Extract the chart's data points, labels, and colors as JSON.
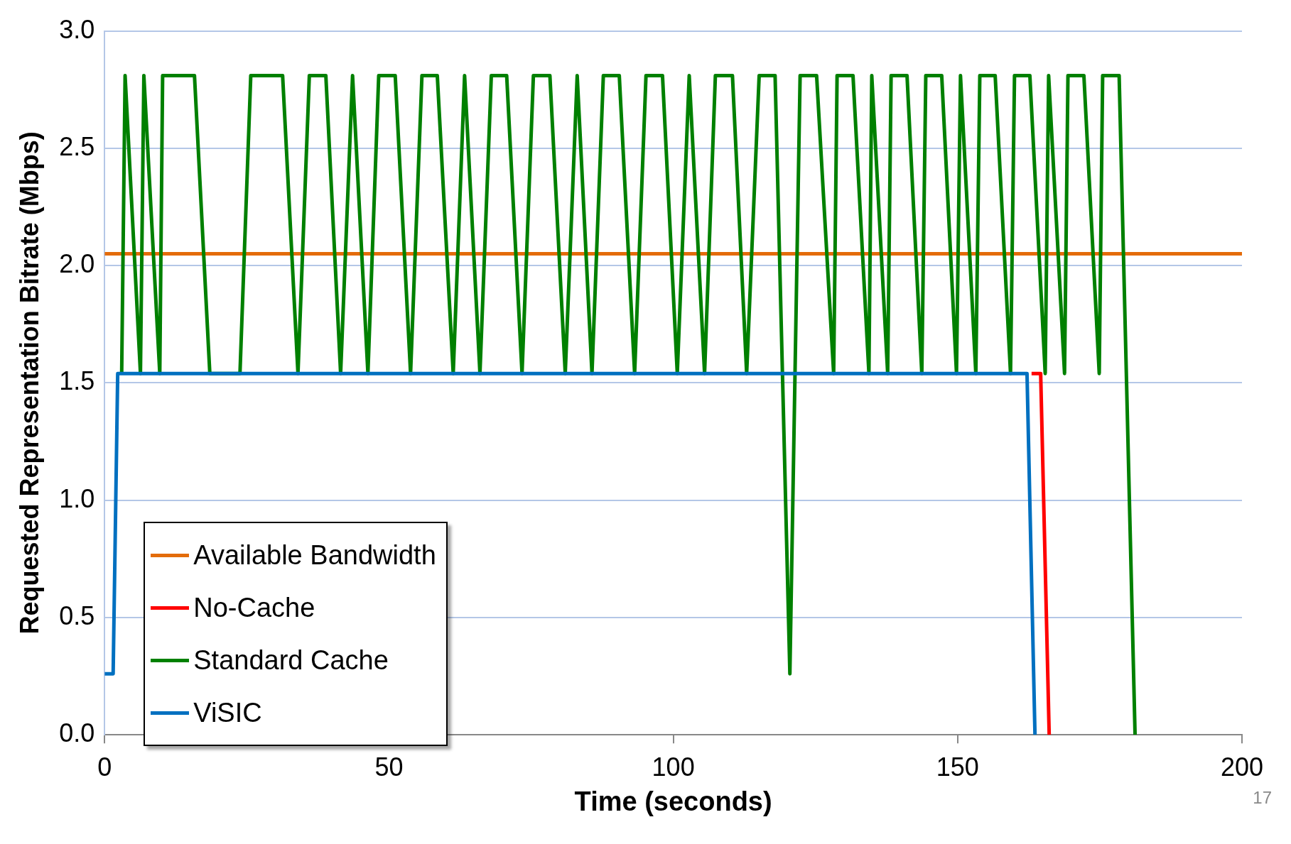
{
  "chart_data": {
    "type": "line",
    "xlabel": "Time (seconds)",
    "ylabel": "Requested Representation Bitrate (Mbps)",
    "xlim": [
      0,
      200
    ],
    "xticks": [
      0,
      50,
      100,
      150,
      200
    ],
    "ylim": [
      0,
      3
    ],
    "yticks": [
      {
        "value": 0,
        "label": "0.0"
      },
      0.5,
      {
        "value": 1,
        "label": "1.0"
      },
      1.5,
      {
        "value": 2,
        "label": "2.0"
      },
      2.5,
      {
        "value": 3,
        "label": "3.0"
      }
    ],
    "grid": "y",
    "legend": "bottom left",
    "marker": "none",
    "line_style": "solid",
    "annotations": [
      "17"
    ],
    "series": [
      {
        "name": "Available Bandwidth",
        "color": "#e36c0a",
        "x": [
          0,
          200
        ],
        "values": [
          2.05,
          2.05
        ]
      },
      {
        "name": "No-Cache",
        "color": "#ff0000",
        "x": [
          163.0,
          164.6,
          166.1
        ],
        "values": [
          1.54,
          1.54,
          0
        ]
      },
      {
        "name": "Standard Cache",
        "color": "#008000",
        "x": [
          3.0,
          3.6,
          6.3,
          6.9,
          9.7,
          10.2,
          15.8,
          18.5,
          23.8,
          25.7,
          31.3,
          34.0,
          36.0,
          38.9,
          41.5,
          43.6,
          46.3,
          48.2,
          51.1,
          53.8,
          55.8,
          58.5,
          61.3,
          63.3,
          66.0,
          68.0,
          70.7,
          73.4,
          75.4,
          78.3,
          81.0,
          83.1,
          85.7,
          87.7,
          90.5,
          93.2,
          95.2,
          98.1,
          100.7,
          102.8,
          105.5,
          107.4,
          110.4,
          112.9,
          115.1,
          117.9,
          120.5,
          122.3,
          125.2,
          128.2,
          128.8,
          131.6,
          134.4,
          134.9,
          137.7,
          138.3,
          141.1,
          143.7,
          144.4,
          147.2,
          149.8,
          150.5,
          153.2,
          153.9,
          156.6,
          159.3,
          160.0,
          162.7,
          165.4,
          166.0,
          168.8,
          169.4,
          172.2,
          174.9,
          175.5,
          178.4,
          181.2
        ],
        "values": [
          1.54,
          2.81,
          1.54,
          2.81,
          1.54,
          2.81,
          2.81,
          1.54,
          1.54,
          2.81,
          2.81,
          1.54,
          2.81,
          2.81,
          1.54,
          2.81,
          1.54,
          2.81,
          2.81,
          1.54,
          2.81,
          2.81,
          1.54,
          2.81,
          1.54,
          2.81,
          2.81,
          1.54,
          2.81,
          2.81,
          1.54,
          2.81,
          1.54,
          2.81,
          2.81,
          1.54,
          2.81,
          2.81,
          1.54,
          2.81,
          1.54,
          2.81,
          2.81,
          1.54,
          2.81,
          2.81,
          0.26,
          2.81,
          2.81,
          1.54,
          2.81,
          2.81,
          1.54,
          2.81,
          1.54,
          2.81,
          2.81,
          1.54,
          2.81,
          2.81,
          1.54,
          2.81,
          1.54,
          2.81,
          2.81,
          1.54,
          2.81,
          2.81,
          1.54,
          2.81,
          1.54,
          2.81,
          2.81,
          1.54,
          2.81,
          2.81,
          0
        ]
      },
      {
        "name": "ViSIC",
        "color": "#0070c0",
        "x": [
          0,
          1.5,
          2.3,
          162.2,
          163.6
        ],
        "values": [
          0.26,
          0.26,
          1.54,
          1.54,
          0
        ]
      }
    ]
  }
}
